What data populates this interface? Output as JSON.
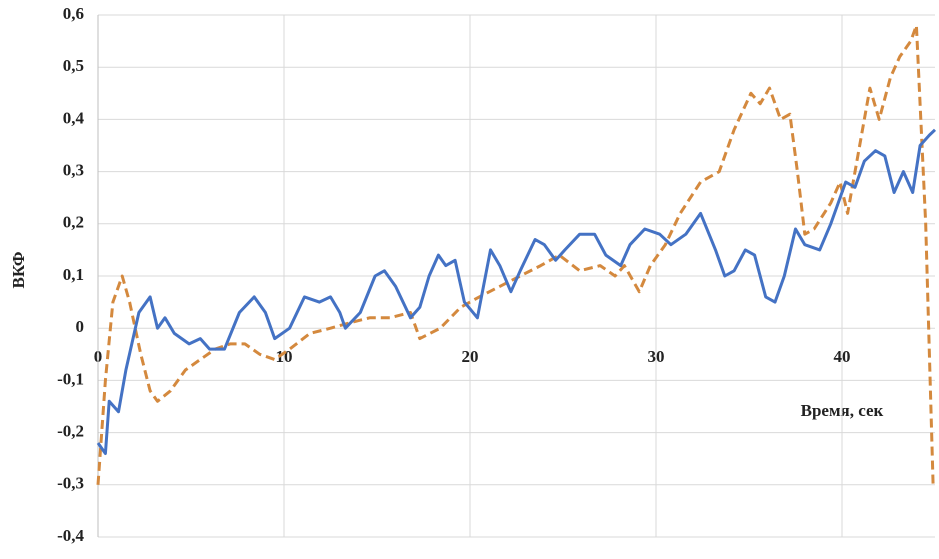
{
  "chart_data": {
    "type": "line",
    "y_label": "ВКФ",
    "x_label": "Время, сек",
    "xlim": [
      0,
      45
    ],
    "xticks": [
      0,
      10,
      20,
      30,
      40
    ],
    "ylim": [
      -0.4,
      0.6
    ],
    "yticks": [
      {
        "value": -0.4,
        "label": "-0,4"
      },
      {
        "value": -0.3,
        "label": "-0,3"
      },
      {
        "value": -0.2,
        "label": "-0,2"
      },
      {
        "value": -0.1,
        "label": "-0,1"
      },
      0,
      {
        "value": 0.1,
        "label": "0,1"
      },
      {
        "value": 0.2,
        "label": "0,2"
      },
      {
        "value": 0.3,
        "label": "0,3"
      },
      {
        "value": 0.4,
        "label": "0,4"
      },
      {
        "value": 0.5,
        "label": "0,5"
      },
      {
        "value": 0.6,
        "label": "0,6"
      }
    ],
    "grid": true,
    "series": [
      {
        "color": "#4472c4",
        "dash": false,
        "x": [
          0,
          0.4,
          0.6,
          1.1,
          1.5,
          2.2,
          2.8,
          3.2,
          3.6,
          4.1,
          4.9,
          5.5,
          6.0,
          6.8,
          7.6,
          8.4,
          9.0,
          9.5,
          10.3,
          11.1,
          11.9,
          12.5,
          13.0,
          13.3,
          14.1,
          14.9,
          15.4,
          16.0,
          16.8,
          17.3,
          17.8,
          18.3,
          18.7,
          19.2,
          19.7,
          20.4,
          21.1,
          21.6,
          22.2,
          22.7,
          23.5,
          24.0,
          24.6,
          25.1,
          25.9,
          26.7,
          27.3,
          28.1,
          28.6,
          29.4,
          30.2,
          30.8,
          31.6,
          32.4,
          33.2,
          33.7,
          34.2,
          34.8,
          35.3,
          35.9,
          36.4,
          36.9,
          37.5,
          38.0,
          38.8,
          39.4,
          40.2,
          40.7,
          41.2,
          41.8,
          42.3,
          42.8,
          43.3,
          43.8,
          44.2,
          44.7,
          45.0
        ],
        "values": [
          -0.22,
          -0.24,
          -0.14,
          -0.16,
          -0.08,
          0.03,
          0.06,
          0.0,
          0.02,
          -0.01,
          -0.03,
          -0.02,
          -0.04,
          -0.04,
          0.03,
          0.06,
          0.03,
          -0.02,
          0.0,
          0.06,
          0.05,
          0.06,
          0.03,
          0.0,
          0.03,
          0.1,
          0.11,
          0.08,
          0.02,
          0.04,
          0.1,
          0.14,
          0.12,
          0.13,
          0.05,
          0.02,
          0.15,
          0.12,
          0.07,
          0.11,
          0.17,
          0.16,
          0.13,
          0.15,
          0.18,
          0.18,
          0.14,
          0.12,
          0.16,
          0.19,
          0.18,
          0.16,
          0.18,
          0.22,
          0.15,
          0.1,
          0.11,
          0.15,
          0.14,
          0.06,
          0.05,
          0.1,
          0.19,
          0.16,
          0.15,
          0.2,
          0.28,
          0.27,
          0.32,
          0.34,
          0.33,
          0.26,
          0.3,
          0.26,
          0.35,
          0.37,
          0.38
        ]
      },
      {
        "color": "#d4893e",
        "dash": true,
        "x": [
          0,
          0.4,
          0.8,
          1.3,
          1.7,
          2.3,
          2.8,
          3.2,
          3.9,
          4.7,
          5.5,
          6.3,
          7.1,
          7.9,
          8.7,
          9.5,
          10.3,
          11.4,
          12.5,
          13.5,
          14.6,
          15.7,
          16.8,
          17.3,
          18.4,
          19.5,
          20.5,
          21.6,
          22.7,
          23.8,
          24.8,
          25.9,
          27.0,
          27.8,
          28.3,
          29.1,
          29.7,
          30.5,
          31.3,
          32.4,
          33.4,
          34.2,
          35.1,
          35.6,
          36.1,
          36.7,
          37.2,
          37.6,
          38.0,
          38.5,
          39.4,
          39.9,
          40.3,
          41.0,
          41.5,
          42.0,
          42.6,
          43.1,
          43.7,
          44.0,
          44.5,
          44.9
        ],
        "values": [
          -0.3,
          -0.1,
          0.05,
          0.1,
          0.05,
          -0.05,
          -0.12,
          -0.14,
          -0.12,
          -0.08,
          -0.06,
          -0.04,
          -0.03,
          -0.03,
          -0.05,
          -0.06,
          -0.04,
          -0.01,
          0.0,
          0.01,
          0.02,
          0.02,
          0.03,
          -0.02,
          0.0,
          0.04,
          0.06,
          0.08,
          0.1,
          0.12,
          0.14,
          0.11,
          0.12,
          0.1,
          0.12,
          0.07,
          0.12,
          0.16,
          0.22,
          0.28,
          0.3,
          0.38,
          0.45,
          0.43,
          0.46,
          0.4,
          0.41,
          0.3,
          0.18,
          0.19,
          0.24,
          0.28,
          0.22,
          0.36,
          0.46,
          0.4,
          0.48,
          0.52,
          0.55,
          0.58,
          0.2,
          -0.3
        ]
      }
    ]
  }
}
